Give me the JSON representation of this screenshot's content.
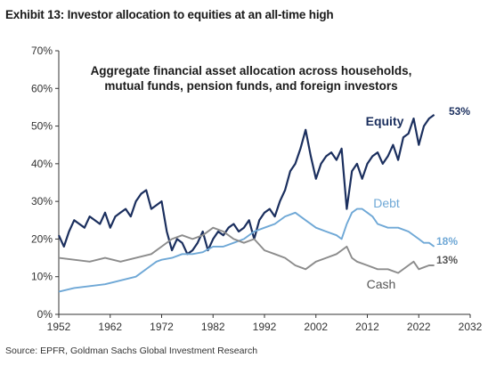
{
  "header": {
    "title": "Exhibit 13: Investor allocation to equities at an all-time high"
  },
  "footer": {
    "source": "Source: EPFR, Goldman Sachs Global Investment Research"
  },
  "chart_data": {
    "type": "line",
    "subtitle_lines": [
      "Aggregate financial asset allocation across households,",
      "mutual funds, pension funds, and foreign investors"
    ],
    "xlim": [
      1952,
      2032
    ],
    "ylim": [
      0,
      70
    ],
    "x_ticks": [
      "1952",
      "1962",
      "1972",
      "1982",
      "1992",
      "2002",
      "2012",
      "2022",
      "2032"
    ],
    "y_ticks": [
      "0%",
      "10%",
      "20%",
      "30%",
      "40%",
      "50%",
      "60%",
      "70%"
    ],
    "grid": false,
    "colors": {
      "Equity": "#1b2f5e",
      "Debt": "#6fa8d6",
      "Cash": "#8c8c8c"
    },
    "series": [
      {
        "name": "Equity",
        "end_label": "53%",
        "x": [
          1952,
          1953,
          1954,
          1955,
          1956,
          1957,
          1958,
          1959,
          1960,
          1961,
          1962,
          1963,
          1964,
          1965,
          1966,
          1967,
          1968,
          1969,
          1970,
          1971,
          1972,
          1973,
          1974,
          1975,
          1976,
          1977,
          1978,
          1979,
          1980,
          1981,
          1982,
          1983,
          1984,
          1985,
          1986,
          1987,
          1988,
          1989,
          1990,
          1991,
          1992,
          1993,
          1994,
          1995,
          1996,
          1997,
          1998,
          1999,
          2000,
          2001,
          2002,
          2003,
          2004,
          2005,
          2006,
          2007,
          2008,
          2009,
          2010,
          2011,
          2012,
          2013,
          2014,
          2015,
          2016,
          2017,
          2018,
          2019,
          2020,
          2021,
          2022,
          2023,
          2024,
          2025
        ],
        "values": [
          21,
          18,
          22,
          25,
          24,
          23,
          26,
          25,
          24,
          27,
          23,
          26,
          27,
          28,
          26,
          30,
          32,
          33,
          28,
          29,
          30,
          22,
          17,
          20,
          19,
          16,
          17,
          19,
          22,
          17,
          20,
          22,
          21,
          23,
          24,
          22,
          23,
          25,
          20,
          25,
          27,
          28,
          26,
          30,
          33,
          38,
          40,
          44,
          49,
          42,
          36,
          40,
          42,
          43,
          41,
          44,
          28,
          38,
          40,
          36,
          40,
          42,
          43,
          40,
          42,
          45,
          41,
          47,
          48,
          52,
          45,
          50,
          52,
          53
        ]
      },
      {
        "name": "Debt",
        "end_label": "18%",
        "x": [
          1952,
          1955,
          1958,
          1961,
          1964,
          1967,
          1970,
          1971,
          1972,
          1974,
          1976,
          1978,
          1980,
          1982,
          1984,
          1986,
          1988,
          1990,
          1992,
          1994,
          1996,
          1998,
          2000,
          2002,
          2004,
          2006,
          2007,
          2008,
          2009,
          2010,
          2011,
          2012,
          2013,
          2014,
          2016,
          2018,
          2020,
          2022,
          2023,
          2024,
          2025
        ],
        "values": [
          6,
          7,
          7.5,
          8,
          9,
          10,
          13,
          14,
          14.5,
          15,
          16,
          16,
          16.5,
          18,
          18,
          19,
          20,
          22,
          23,
          24,
          26,
          27,
          25,
          23,
          22,
          21,
          20,
          24,
          27,
          28,
          28,
          27,
          26,
          24,
          23,
          23,
          22,
          20,
          19,
          19,
          18
        ]
      },
      {
        "name": "Cash",
        "end_label": "13%",
        "x": [
          1952,
          1955,
          1958,
          1961,
          1964,
          1967,
          1970,
          1972,
          1974,
          1976,
          1978,
          1980,
          1982,
          1984,
          1986,
          1988,
          1990,
          1992,
          1994,
          1996,
          1998,
          2000,
          2002,
          2004,
          2006,
          2008,
          2009,
          2010,
          2012,
          2014,
          2016,
          2018,
          2020,
          2021,
          2022,
          2024,
          2025
        ],
        "values": [
          15,
          14.5,
          14,
          15,
          14,
          15,
          16,
          18,
          20,
          21,
          20,
          21,
          23,
          22,
          20,
          19,
          20,
          17,
          16,
          15,
          13,
          12,
          14,
          15,
          16,
          18,
          15,
          14,
          13,
          12,
          12,
          11,
          13,
          14,
          12,
          13,
          13
        ]
      }
    ]
  }
}
